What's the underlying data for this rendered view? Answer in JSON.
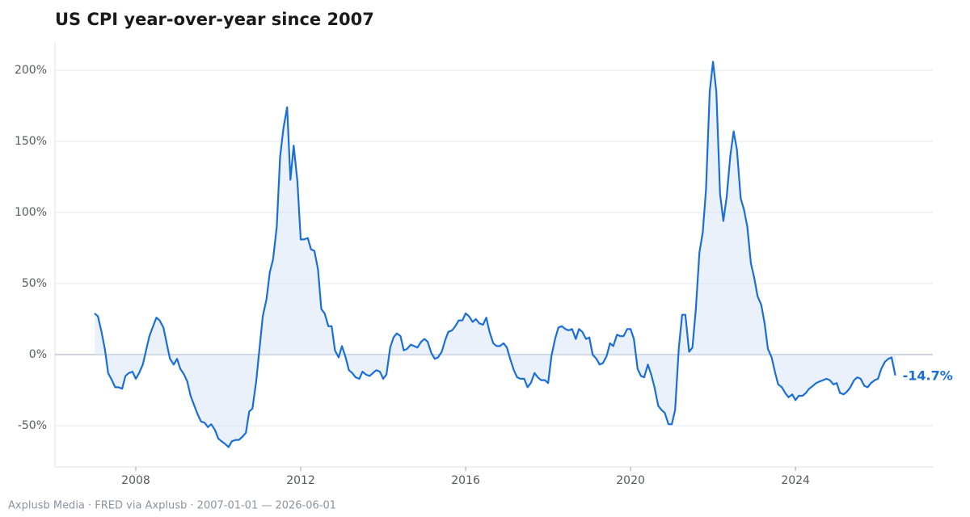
{
  "chart_data": {
    "type": "line",
    "title": "US CPI year-over-year since 2007",
    "source": "Axplusb Media · FRED via Axplusb · 2007-01-01 — 2026-06-01",
    "end_label": "-14.7%",
    "x": [
      2007,
      2007.08,
      2007.17,
      2007.25,
      2007.33,
      2007.42,
      2007.5,
      2007.58,
      2007.67,
      2007.75,
      2007.83,
      2007.92,
      2008,
      2008.08,
      2008.17,
      2008.25,
      2008.33,
      2008.42,
      2008.5,
      2008.58,
      2008.67,
      2008.75,
      2008.83,
      2008.92,
      2009,
      2009.08,
      2009.17,
      2009.25,
      2009.33,
      2009.42,
      2009.5,
      2009.58,
      2009.67,
      2009.75,
      2009.83,
      2009.92,
      2010,
      2010.08,
      2010.17,
      2010.25,
      2010.33,
      2010.42,
      2010.5,
      2010.58,
      2010.67,
      2010.75,
      2010.83,
      2010.92,
      2011,
      2011.08,
      2011.17,
      2011.25,
      2011.33,
      2011.42,
      2011.5,
      2011.58,
      2011.67,
      2011.75,
      2011.83,
      2011.92,
      2012,
      2012.08,
      2012.17,
      2012.25,
      2012.33,
      2012.42,
      2012.5,
      2012.58,
      2012.67,
      2012.75,
      2012.83,
      2012.92,
      2013,
      2013.08,
      2013.17,
      2013.25,
      2013.33,
      2013.42,
      2013.5,
      2013.58,
      2013.67,
      2013.75,
      2013.83,
      2013.92,
      2014,
      2014.08,
      2014.17,
      2014.25,
      2014.33,
      2014.42,
      2014.5,
      2014.58,
      2014.67,
      2014.75,
      2014.83,
      2014.92,
      2015,
      2015.08,
      2015.17,
      2015.25,
      2015.33,
      2015.42,
      2015.5,
      2015.58,
      2015.67,
      2015.75,
      2015.83,
      2015.92,
      2016,
      2016.08,
      2016.17,
      2016.25,
      2016.33,
      2016.42,
      2016.5,
      2016.58,
      2016.67,
      2016.75,
      2016.83,
      2016.92,
      2017,
      2017.08,
      2017.17,
      2017.25,
      2017.33,
      2017.42,
      2017.5,
      2017.58,
      2017.67,
      2017.75,
      2017.83,
      2017.92,
      2018,
      2018.08,
      2018.17,
      2018.25,
      2018.33,
      2018.42,
      2018.5,
      2018.58,
      2018.67,
      2018.75,
      2018.83,
      2018.92,
      2019,
      2019.08,
      2019.17,
      2019.25,
      2019.33,
      2019.42,
      2019.5,
      2019.58,
      2019.67,
      2019.75,
      2019.83,
      2019.92,
      2020,
      2020.08,
      2020.17,
      2020.25,
      2020.33,
      2020.42,
      2020.5,
      2020.58,
      2020.67,
      2020.75,
      2020.83,
      2020.92,
      2021,
      2021.08,
      2021.17,
      2021.25,
      2021.33,
      2021.42,
      2021.5,
      2021.58,
      2021.67,
      2021.75,
      2021.83,
      2021.92,
      2022,
      2022.08,
      2022.17,
      2022.25,
      2022.33,
      2022.42,
      2022.5,
      2022.58,
      2022.67,
      2022.75,
      2022.83,
      2022.92,
      2023,
      2023.08,
      2023.17,
      2023.25,
      2023.33,
      2023.42,
      2023.5,
      2023.58,
      2023.67,
      2023.75,
      2023.83,
      2023.92,
      2024,
      2024.08,
      2024.17,
      2024.25,
      2024.33,
      2024.42,
      2024.5,
      2024.58,
      2024.67,
      2024.75,
      2024.83,
      2024.92,
      2025,
      2025.08,
      2025.17,
      2025.25,
      2025.33,
      2025.42,
      2025.5,
      2025.58,
      2025.67,
      2025.75,
      2025.83,
      2025.92,
      2026,
      2026.08,
      2026.17,
      2026.25,
      2026.33,
      2026.42
    ],
    "series": [
      {
        "color": "#1a6fd6",
        "fill": "#dce8f7",
        "values": [
          29,
          27,
          16,
          4,
          -13,
          -18,
          -23,
          -23,
          -24,
          -15,
          -13,
          -12,
          -17,
          -13,
          -7,
          3,
          13,
          20,
          26,
          24,
          19,
          8,
          -3,
          -7,
          -3,
          -10,
          -14,
          -19,
          -29,
          -36,
          -42,
          -47,
          -48,
          -51,
          -49,
          -53,
          -59,
          -61,
          -63,
          -65,
          -61,
          -60,
          -60,
          -58,
          -55,
          -40,
          -38,
          -19,
          4,
          27,
          39,
          58,
          67,
          90,
          139,
          159,
          174,
          123,
          147,
          122,
          81,
          81,
          82,
          74,
          73,
          60,
          32,
          29,
          20,
          20,
          3,
          -2,
          6,
          -1,
          -11,
          -13,
          -16,
          -17,
          -12,
          -14,
          -15,
          -13,
          -11,
          -12,
          -17,
          -14,
          5,
          12,
          15,
          13,
          3,
          4,
          7,
          6,
          5,
          9,
          11,
          9,
          1,
          -3,
          -2,
          2,
          10,
          16,
          17,
          20,
          24,
          24,
          29,
          27,
          23,
          25,
          22,
          21,
          26,
          16,
          8,
          6,
          6,
          8,
          5,
          -3,
          -11,
          -16,
          -17,
          -17,
          -23,
          -20,
          -13,
          -16,
          -18,
          -18,
          -20,
          -1,
          11,
          19,
          20,
          18,
          17,
          18,
          11,
          18,
          16,
          11,
          12,
          0,
          -3,
          -7,
          -6,
          -1,
          8,
          6,
          14,
          13,
          13,
          18,
          18,
          11,
          -10,
          -15,
          -16,
          -7,
          -14,
          -23,
          -36,
          -39,
          -41,
          -49,
          -49,
          -39,
          5,
          28,
          28,
          2,
          5,
          31,
          72,
          86,
          116,
          185,
          206,
          185,
          113,
          94,
          111,
          140,
          157,
          144,
          110,
          102,
          90,
          64,
          54,
          41,
          35,
          22,
          4,
          -2,
          -12,
          -21,
          -23,
          -27,
          -30,
          -28,
          -32,
          -29,
          -29,
          -27,
          -24,
          -22,
          -20,
          -19,
          -18,
          -17,
          -18,
          -21,
          -20,
          -27,
          -28,
          -26,
          -23,
          -18,
          -16,
          -17,
          -22,
          -23,
          -20,
          -18,
          -17,
          -10,
          -5,
          -3,
          -2,
          -14.7
        ]
      }
    ],
    "xlim": [
      2006.04,
      2027.33
    ],
    "xticks": [
      2008,
      2012,
      2016,
      2020,
      2024
    ],
    "ylim": [
      -79,
      219.3
    ],
    "yticks": [
      {
        "value": -50,
        "label": "-50%"
      },
      {
        "value": 0,
        "label": "0%"
      },
      {
        "value": 50,
        "label": "50%"
      },
      {
        "value": 100,
        "label": "100%"
      },
      {
        "value": 150,
        "label": "150%"
      },
      {
        "value": 200,
        "label": "200%"
      }
    ],
    "grid": true
  }
}
